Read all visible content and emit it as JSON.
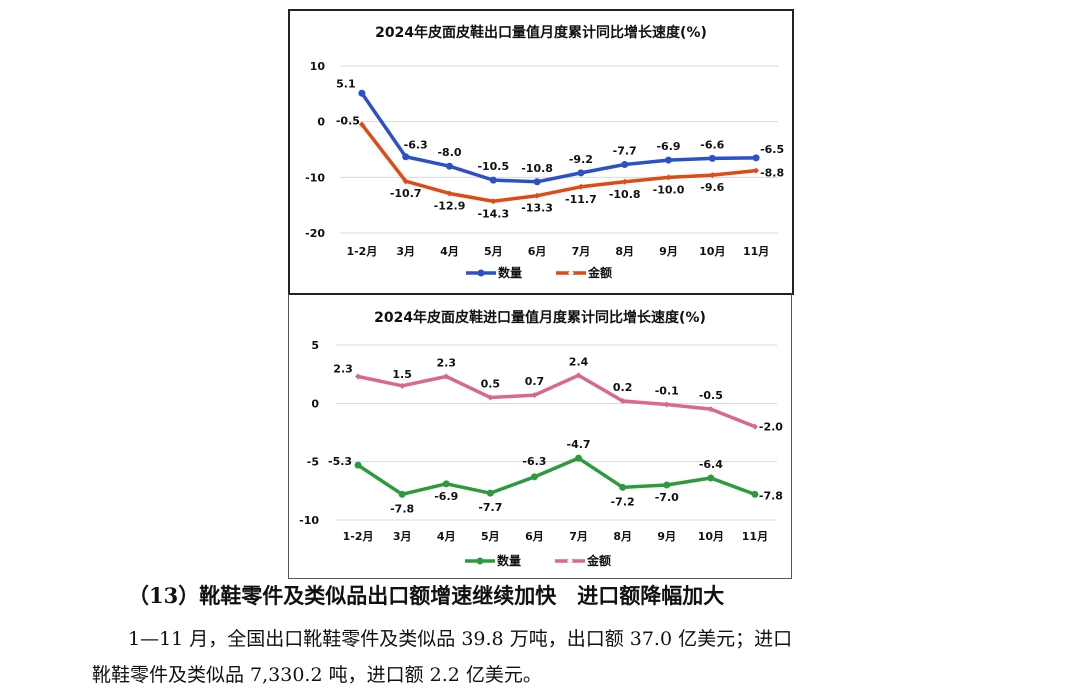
{
  "chart_data": [
    {
      "type": "line",
      "title": "2024年皮面皮鞋出口量值月度累计同比增长速度(%)",
      "categories": [
        "1-2月",
        "3月",
        "4月",
        "5月",
        "6月",
        "7月",
        "8月",
        "9月",
        "10月",
        "11月"
      ],
      "yticks": [
        10,
        0,
        -10,
        -20
      ],
      "ylim": [
        -20,
        10
      ],
      "grid": true,
      "legend_position": "bottom",
      "series": [
        {
          "name": "数量",
          "color": "#2b50c8",
          "marker": "circle",
          "values": [
            5.1,
            -6.3,
            -8.0,
            -10.5,
            -10.8,
            -9.2,
            -7.7,
            -6.9,
            -6.6,
            -6.5
          ],
          "labels": [
            "5.1",
            "-6.3",
            "-8.0",
            "-10.5",
            "-10.8",
            "-9.2",
            "-7.7",
            "-6.9",
            "-6.6",
            "-6.5"
          ]
        },
        {
          "name": "金额",
          "color": "#e04a16",
          "marker": "diamond",
          "values": [
            -0.5,
            -10.7,
            -12.9,
            -14.3,
            -13.3,
            -11.7,
            -10.8,
            -10.0,
            -9.6,
            -8.8
          ],
          "labels": [
            "-0.5",
            "-10.7",
            "-12.9",
            "-14.3",
            "-13.3",
            "-11.7",
            "-10.8",
            "-10.0",
            "-9.6",
            "-8.8"
          ]
        }
      ]
    },
    {
      "type": "line",
      "title": "2024年皮面皮鞋进口量值月度累计同比增长速度(%)",
      "categories": [
        "1-2月",
        "3月",
        "4月",
        "5月",
        "6月",
        "7月",
        "8月",
        "9月",
        "10月",
        "11月"
      ],
      "yticks": [
        5,
        0,
        -5,
        -10
      ],
      "ylim": [
        -10,
        5
      ],
      "grid": true,
      "legend_position": "bottom",
      "series": [
        {
          "name": "数量",
          "color": "#2e9a3e",
          "marker": "circle",
          "values": [
            -5.3,
            -7.8,
            -6.9,
            -7.7,
            -6.3,
            -4.7,
            -7.2,
            -7.0,
            -6.4,
            -7.8
          ],
          "labels": [
            "-5.3",
            "-7.8",
            "-6.9",
            "-7.7",
            "-6.3",
            "-4.7",
            "-7.2",
            "-7.0",
            "-6.4",
            "-7.8"
          ]
        },
        {
          "name": "金额",
          "color": "#d9688e",
          "marker": "diamond",
          "values": [
            2.3,
            1.5,
            2.3,
            0.5,
            0.7,
            2.4,
            0.2,
            -0.1,
            -0.5,
            -2.0
          ],
          "labels": [
            "2.3",
            "1.5",
            "2.3",
            "0.5",
            "0.7",
            "2.4",
            "0.2",
            "-0.1",
            "-0.5",
            "-2.0"
          ]
        }
      ]
    }
  ],
  "text": {
    "heading": "（13）靴鞋零件及类似品出口额增速继续加快　进口额降幅加大",
    "para_line1": "1—11 月，全国出口靴鞋零件及类似品 39.8 万吨，出口额 37.0 亿美元；进口",
    "para_line2": "靴鞋零件及类似品 7,330.2 吨，进口额 2.2 亿美元。"
  }
}
